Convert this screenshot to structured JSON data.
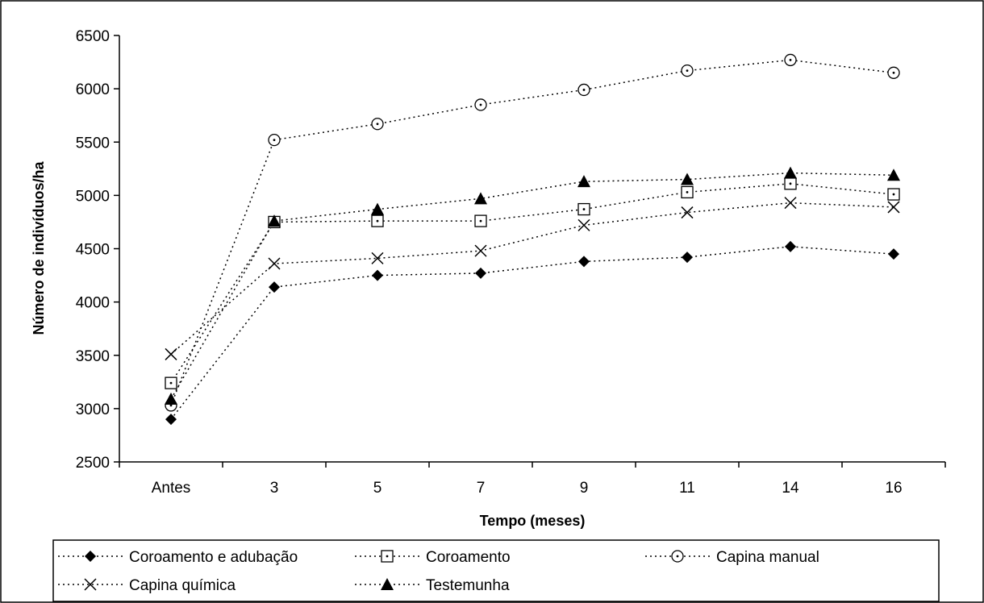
{
  "chart_data": {
    "type": "line",
    "title": "",
    "xlabel": "Tempo (meses)",
    "ylabel": "Número de indivíduos/ha",
    "categories": [
      "Antes",
      "3",
      "5",
      "7",
      "9",
      "11",
      "14",
      "16"
    ],
    "ylim": [
      2500,
      6500
    ],
    "yticks": [
      2500,
      3000,
      3500,
      4000,
      4500,
      5000,
      5500,
      6000,
      6500
    ],
    "grid": false,
    "legend_position": "bottom",
    "series": [
      {
        "name": "Coroamento e adubação",
        "marker": "filled-diamond",
        "values": [
          2900,
          4140,
          4250,
          4270,
          4380,
          4420,
          4520,
          4450
        ]
      },
      {
        "name": "Coroamento",
        "marker": "dotted-square",
        "values": [
          3240,
          4750,
          4760,
          4760,
          4870,
          5030,
          5110,
          5010
        ]
      },
      {
        "name": "Capina manual",
        "marker": "dotted-circle",
        "values": [
          3030,
          5520,
          5670,
          5850,
          5990,
          6170,
          6270,
          6150
        ]
      },
      {
        "name": "Capina química",
        "marker": "x",
        "values": [
          3510,
          4360,
          4410,
          4480,
          4720,
          4840,
          4930,
          4890
        ]
      },
      {
        "name": "Testemunha",
        "marker": "filled-triangle",
        "values": [
          3090,
          4760,
          4870,
          4970,
          5130,
          5150,
          5210,
          5190
        ]
      }
    ]
  }
}
